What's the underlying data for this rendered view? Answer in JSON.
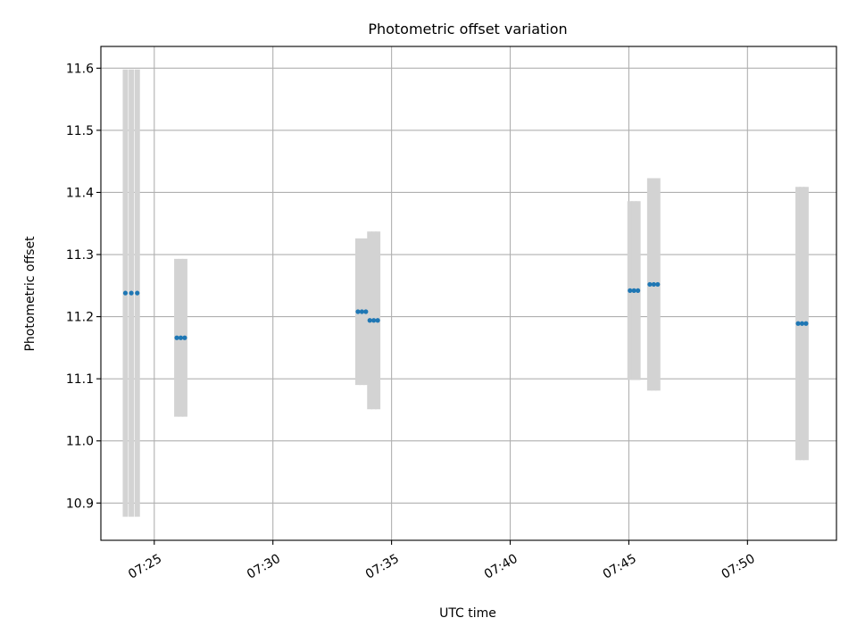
{
  "colors": {
    "point": "#1f77b4",
    "errorbar": "#d3d3d3",
    "grid": "#b0b0b0",
    "axes": "#000000"
  },
  "chart_data": {
    "type": "scatter",
    "title": "Photometric offset variation",
    "xlabel": "UTC time",
    "ylabel": "Photometric offset",
    "x_axis_kind": "time",
    "xlim": [
      "07:22:45",
      "07:53:45"
    ],
    "ylim": [
      10.84,
      11.635
    ],
    "grid": true,
    "x_ticks": [
      "07:25",
      "07:30",
      "07:35",
      "07:40",
      "07:45",
      "07:50"
    ],
    "y_ticks": [
      "10.9",
      "11.0",
      "11.1",
      "11.2",
      "11.3",
      "11.4",
      "11.5",
      "11.6"
    ],
    "series": [
      {
        "marker": "dot",
        "points": [
          {
            "x": "07:23:47",
            "y": 11.238,
            "err": 0.36
          },
          {
            "x": "07:24:02",
            "y": 11.238,
            "err": 0.36
          },
          {
            "x": "07:24:17",
            "y": 11.238,
            "err": 0.36
          },
          {
            "x": "07:25:57",
            "y": 11.166,
            "err": 0.127
          },
          {
            "x": "07:26:07",
            "y": 11.166,
            "err": 0.127
          },
          {
            "x": "07:26:17",
            "y": 11.166,
            "err": 0.127
          },
          {
            "x": "07:33:35",
            "y": 11.208,
            "err": 0.118
          },
          {
            "x": "07:33:45",
            "y": 11.208,
            "err": 0.118
          },
          {
            "x": "07:33:55",
            "y": 11.208,
            "err": 0.118
          },
          {
            "x": "07:34:05",
            "y": 11.194,
            "err": 0.143
          },
          {
            "x": "07:34:15",
            "y": 11.194,
            "err": 0.143
          },
          {
            "x": "07:34:25",
            "y": 11.194,
            "err": 0.143
          },
          {
            "x": "07:45:03",
            "y": 11.242,
            "err": 0.144
          },
          {
            "x": "07:45:13",
            "y": 11.242,
            "err": 0.144
          },
          {
            "x": "07:45:23",
            "y": 11.242,
            "err": 0.144
          },
          {
            "x": "07:45:53",
            "y": 11.252,
            "err": 0.171
          },
          {
            "x": "07:46:03",
            "y": 11.252,
            "err": 0.171
          },
          {
            "x": "07:46:13",
            "y": 11.252,
            "err": 0.171
          },
          {
            "x": "07:52:08",
            "y": 11.189,
            "err": 0.22
          },
          {
            "x": "07:52:18",
            "y": 11.189,
            "err": 0.22
          },
          {
            "x": "07:52:28",
            "y": 11.189,
            "err": 0.22
          }
        ]
      }
    ]
  }
}
